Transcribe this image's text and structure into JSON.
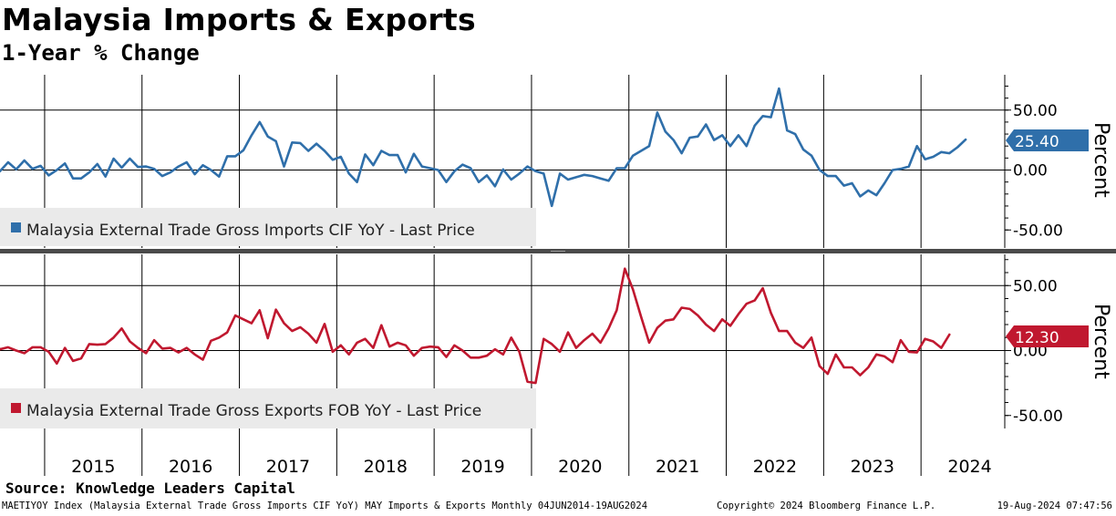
{
  "header": {
    "title": "Malaysia Imports & Exports",
    "subtitle": "1-Year % Change"
  },
  "source_label": "Source: Knowledge Leaders Capital",
  "footer": {
    "left": "MAETIYOY Index (Malaysia External Trade Gross Imports CIF YoY) MAY Imports & Exports  Monthly 04JUN2014-19AUG2024",
    "middle": "Copyright© 2024 Bloomberg Finance L.P.",
    "right": "19-Aug-2024 07:47:56"
  },
  "colors": {
    "imports": "#2f6faa",
    "exports": "#c0182f"
  },
  "chart_data": [
    {
      "type": "line",
      "panel": "top",
      "series_name": "Malaysia External Trade Gross Imports CIF YoY - Last Price",
      "ylabel": "Percent",
      "ylim": [
        -57,
        75
      ],
      "y_ticks": [
        "50.00",
        "0.00",
        "-50.00"
      ],
      "y_tick_values": [
        50,
        0,
        -50
      ],
      "last_value": 25.4,
      "last_value_label": "25.40",
      "start_year": 2014,
      "start_month": 6,
      "values": [
        7.5,
        -1.0,
        6.5,
        0.5,
        8.0,
        1.0,
        3.5,
        -4.5,
        0.0,
        5.5,
        -7.0,
        -7.0,
        -2.0,
        5.0,
        -5.5,
        9.5,
        2.0,
        9.5,
        2.5,
        3.0,
        1.0,
        -5.0,
        -2.0,
        3.0,
        6.5,
        -3.5,
        4.0,
        0.0,
        -5.5,
        11.5,
        11.5,
        16.5,
        29.0,
        40.0,
        28.0,
        24.0,
        3.0,
        23.0,
        22.5,
        16.0,
        22.0,
        16.0,
        8.5,
        11.0,
        -3.0,
        -10.0,
        13.0,
        4.0,
        16.0,
        12.5,
        12.5,
        -2.0,
        13.5,
        3.0,
        1.5,
        0.0,
        -10.0,
        -1.0,
        4.5,
        1.5,
        -10.0,
        -4.5,
        -13.5,
        0.5,
        -8.0,
        -3.0,
        3.0,
        -1.0,
        -3.0,
        -30.0,
        -3.0,
        -8.0,
        -6.0,
        -4.0,
        -5.0,
        -7.0,
        -9.0,
        1.5,
        1.5,
        12.0,
        16.0,
        20.0,
        48.0,
        32.0,
        25.0,
        14.0,
        27.0,
        28.0,
        38.0,
        25.0,
        29.0,
        20.0,
        29.0,
        20.0,
        37.0,
        45.0,
        44.0,
        68.0,
        33.0,
        30.0,
        17.0,
        12.0,
        0.0,
        -5.0,
        -5.0,
        -13.0,
        -11.0,
        -22.0,
        -17.0,
        -21.0,
        -11.0,
        0.0,
        1.0,
        3.0,
        20.0,
        9.0,
        11.0,
        15.0,
        14.0,
        19.0,
        25.4
      ]
    },
    {
      "type": "line",
      "panel": "bottom",
      "series_name": "Malaysia External Trade Gross Exports FOB YoY - Last Price",
      "ylabel": "Percent",
      "ylim": [
        -60,
        70
      ],
      "y_ticks": [
        "50.00",
        "0.00",
        "-50.00"
      ],
      "y_tick_values": [
        50,
        0,
        -50
      ],
      "last_value": 12.3,
      "last_value_label": "12.30",
      "start_year": 2014,
      "start_month": 6,
      "values": [
        7.5,
        1.0,
        2.5,
        0.0,
        -2.0,
        2.5,
        2.5,
        -1.0,
        -10.0,
        2.0,
        -8.0,
        -6.0,
        5.0,
        4.5,
        5.0,
        10.0,
        17.0,
        7.0,
        2.0,
        -2.0,
        8.0,
        1.5,
        2.0,
        -1.5,
        2.0,
        -3.0,
        -7.0,
        7.5,
        10.0,
        14.0,
        27.0,
        24.0,
        21.0,
        31.0,
        9.5,
        31.5,
        21.0,
        15.0,
        18.0,
        13.0,
        6.0,
        20.5,
        -1.0,
        4.0,
        -3.0,
        6.0,
        9.0,
        2.0,
        19.5,
        3.0,
        6.0,
        4.0,
        -4.0,
        2.0,
        3.0,
        2.5,
        -5.0,
        4.0,
        0.0,
        -5.5,
        -5.5,
        -4.0,
        1.0,
        -3.0,
        10.0,
        -1.0,
        -24.0,
        -25.0,
        9.0,
        5.0,
        -1.0,
        14.0,
        2.0,
        8.0,
        13.0,
        6.0,
        17.0,
        31.0,
        63.0,
        47.0,
        26.0,
        6.0,
        17.5,
        23.0,
        24.0,
        33.0,
        32.0,
        27.0,
        20.0,
        15.0,
        24.0,
        19.0,
        28.0,
        36.0,
        38.5,
        48.0,
        29.0,
        15.0,
        15.0,
        6.0,
        2.0,
        10.0,
        -12.0,
        -18.0,
        -3.0,
        -13.0,
        -13.0,
        -19.0,
        -13.0,
        -3.0,
        -4.5,
        -9.0,
        8.0,
        -1.0,
        -1.5,
        9.0,
        7.0,
        2.0,
        12.3
      ]
    }
  ],
  "x_axis": {
    "years": [
      "2015",
      "2016",
      "2017",
      "2018",
      "2019",
      "2020",
      "2021",
      "2022",
      "2023",
      "2024"
    ]
  }
}
